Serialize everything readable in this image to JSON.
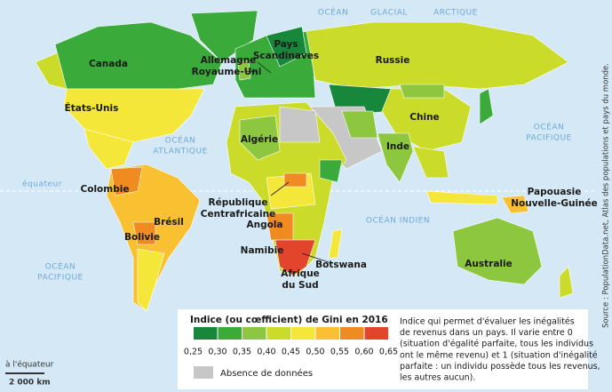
{
  "ocean_labels": [
    [
      "OCÉAN"
    ],
    [
      "GLACIAL"
    ],
    [
      "ARCTIQUE"
    ],
    [
      "OCÉAN",
      "ATLANTIQUE"
    ],
    [
      "OCÉAN",
      "PACIFIQUE"
    ],
    [
      "OCÉAN",
      "PACIFIQUE"
    ],
    [
      "OCÉAN INDIEN"
    ]
  ],
  "equator": "équateur",
  "country_labels": [
    [
      "Canada"
    ],
    [
      "États-Unis"
    ],
    [
      "Allemagne"
    ],
    [
      "Royaume-Uni"
    ],
    [
      "Pays",
      "Scandinaves"
    ],
    [
      "Russie"
    ],
    [
      "Chine"
    ],
    [
      "Inde"
    ],
    [
      "Algérie"
    ],
    [
      "Colombie"
    ],
    [
      "Brésil"
    ],
    [
      "Bolivie"
    ],
    [
      "République",
      "Centrafricaine"
    ],
    [
      "Angola"
    ],
    [
      "Namibie"
    ],
    [
      "Afrique",
      "du Sud"
    ],
    [
      "Botswana"
    ],
    [
      "Papouasie",
      "Nouvelle-Guinée"
    ],
    [
      "Australie"
    ]
  ],
  "legend": {
    "title": "Indice (ou cœfficient) de Gini en 2016",
    "ticks": [
      {
        "value": 0.25,
        "label": "0,25"
      },
      {
        "value": 0.3,
        "label": "0,30"
      },
      {
        "value": 0.35,
        "label": "0,35"
      },
      {
        "value": 0.4,
        "label": "0,40"
      },
      {
        "value": 0.45,
        "label": "0,45"
      },
      {
        "value": 0.5,
        "label": "0,50"
      },
      {
        "value": 0.55,
        "label": "0,55"
      },
      {
        "value": 0.6,
        "label": "0,60"
      },
      {
        "value": 0.65,
        "label": "0,65"
      }
    ],
    "colors": [
      "#17883b",
      "#3aab3a",
      "#8dc63f",
      "#cbdb2a",
      "#f5e73a",
      "#f9c132",
      "#ef8b20",
      "#e2452b"
    ],
    "no_data": "Absence de données",
    "description": [
      "Indice qui permet d'évaluer les inégalités",
      "de revenus dans un pays. Il varie entre 0",
      "(situation d'égalité parfaite, tous les individus",
      "ont le même revenu) et 1 (situation d'inégalité",
      "parfaite : un individu possède tous les revenus,",
      "les autres aucun)."
    ]
  },
  "scale": {
    "caption": "à l'équateur",
    "distance": "2 000 km"
  },
  "source": "Source : PopulationData.net, Atlas des populations et pays du monde."
}
